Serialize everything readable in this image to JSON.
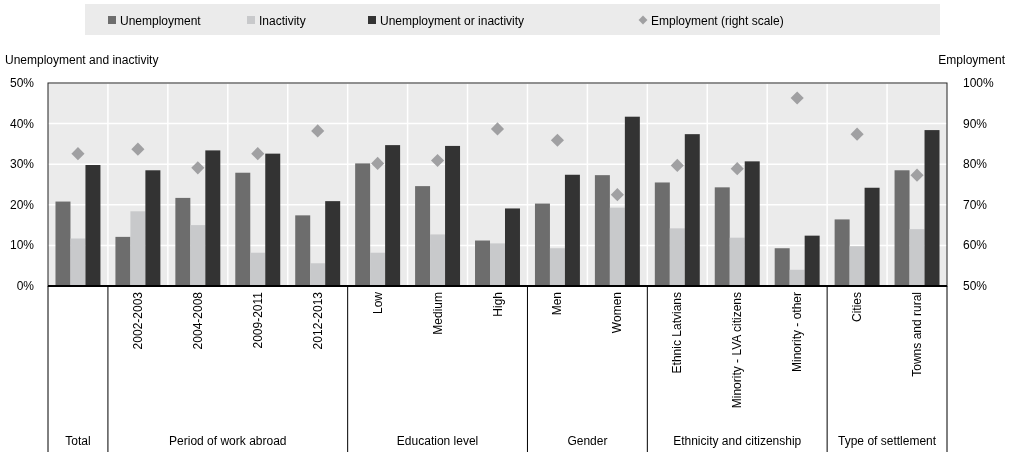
{
  "chart_data": {
    "type": "bar",
    "ylabel": "Unemployment and inactivity",
    "y2label": "Employment",
    "categories": [
      null,
      "2002-2003",
      "2004-2008",
      "2009-2011",
      "2012-2013",
      "Low",
      "Medium",
      "High",
      "Men",
      "Women",
      "Ethnic Latvians",
      "Minority - LVA citizens",
      "Minority - other",
      "Cities",
      "Towns and rural"
    ],
    "series": [
      {
        "name": "Unemployment",
        "color": "#6d6d6d",
        "values": [
          20.8,
          12.1,
          21.7,
          27.9,
          17.4,
          30.2,
          24.6,
          11.2,
          20.3,
          27.3,
          25.5,
          24.3,
          9.3,
          16.4,
          28.5
        ]
      },
      {
        "name": "Inactivity",
        "color": "#c8c9cb",
        "values": [
          11.7,
          18.4,
          15.0,
          8.2,
          5.6,
          8.2,
          12.7,
          10.5,
          9.3,
          19.3,
          14.2,
          11.9,
          4.0,
          9.8,
          14.0
        ]
      },
      {
        "name": "Unemployment or inactivity",
        "color": "#333333",
        "values": [
          29.8,
          28.5,
          33.4,
          32.6,
          20.9,
          34.7,
          34.5,
          19.1,
          27.4,
          41.7,
          37.4,
          30.7,
          12.4,
          24.2,
          38.4
        ]
      },
      {
        "name": "Employment (right scale)",
        "type": "scatter",
        "axis": "y2",
        "marker": "diamond",
        "color": "#a0a0a2",
        "values": [
          82.6,
          83.7,
          79.1,
          82.6,
          88.2,
          80.2,
          80.9,
          88.7,
          85.9,
          72.5,
          79.7,
          78.9,
          96.3,
          87.4,
          77.3
        ]
      }
    ],
    "ylim": [
      0,
      50
    ],
    "yticks": [
      {
        "value": 0,
        "label": "0%"
      },
      {
        "value": 10,
        "label": "10%"
      },
      {
        "value": 20,
        "label": "20%"
      },
      {
        "value": 30,
        "label": "30%"
      },
      {
        "value": 40,
        "label": "40%"
      },
      {
        "value": 50,
        "label": "50%"
      }
    ],
    "y2lim": [
      50,
      100
    ],
    "y2ticks": [
      {
        "value": 50,
        "label": "50%"
      },
      {
        "value": 60,
        "label": "60%"
      },
      {
        "value": 70,
        "label": "70%"
      },
      {
        "value": 80,
        "label": "80%"
      },
      {
        "value": 90,
        "label": "90%"
      },
      {
        "value": 100,
        "label": "100%"
      }
    ],
    "grid": true,
    "legend": "top",
    "annotations": [
      "Total",
      "Period of work abroad",
      "Education level",
      "Gender",
      "Ethnicity and citizenship",
      "Type of settlement"
    ]
  }
}
